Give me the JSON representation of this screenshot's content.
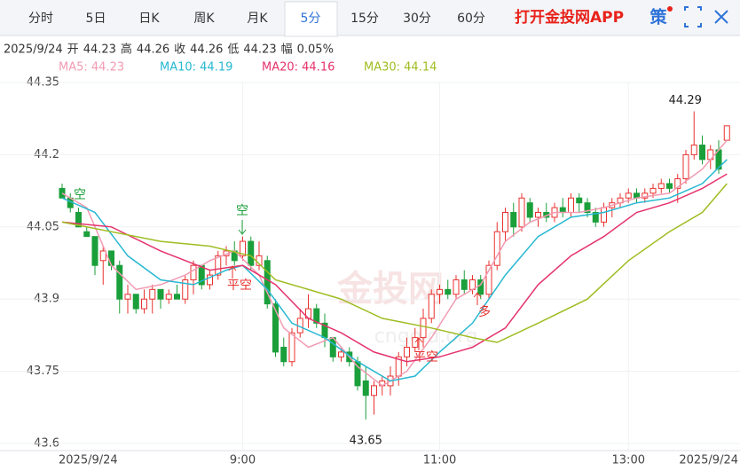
{
  "header": {
    "tabs": [
      "分时",
      "5日",
      "日K",
      "周K",
      "月K",
      "5分",
      "15分",
      "30分",
      "60分"
    ],
    "active_tab": 5,
    "brand": "打开金投网APP",
    "icon": "策"
  },
  "info": {
    "date": "2025/9/24",
    "labels": [
      "开",
      "高",
      "收",
      "低",
      "幅"
    ],
    "change": "0.05%"
  },
  "chart_data": {
    "type": "candlestick",
    "ylim": [
      43.6,
      44.35
    ],
    "yticks": [
      44.35,
      44.2,
      44.05,
      43.9,
      43.75,
      43.6
    ],
    "grid": true,
    "up_color": "#e8322f",
    "down_color": "#1a9f3a",
    "categories": [
      "2025/9/24",
      null,
      null,
      null,
      null,
      null,
      null,
      null,
      null,
      null,
      null,
      null,
      null,
      null,
      null,
      null,
      null,
      null,
      null,
      null,
      null,
      null,
      "9:00",
      null,
      null,
      null,
      null,
      null,
      null,
      null,
      null,
      null,
      null,
      null,
      null,
      null,
      null,
      null,
      null,
      null,
      null,
      null,
      null,
      null,
      null,
      null,
      "11:00",
      null,
      null,
      null,
      null,
      null,
      null,
      null,
      null,
      null,
      null,
      null,
      null,
      null,
      null,
      null,
      null,
      null,
      null,
      null,
      null,
      null,
      null,
      "13:00",
      null,
      null,
      null,
      null,
      null,
      null,
      null,
      null,
      null,
      null,
      null,
      "2025/9/24"
    ],
    "candles": [
      [
        44.13,
        44.14,
        44.11,
        44.11
      ],
      [
        44.11,
        44.12,
        44.08,
        44.09
      ],
      [
        44.08,
        44.09,
        44.05,
        44.05
      ],
      [
        44.04,
        44.05,
        44.03,
        44.03
      ],
      [
        44.03,
        44.03,
        43.95,
        43.97
      ],
      [
        43.98,
        44.01,
        43.93,
        44.0
      ],
      [
        44.0,
        44.0,
        43.96,
        43.97
      ],
      [
        43.97,
        43.98,
        43.87,
        43.9
      ],
      [
        43.9,
        43.93,
        43.87,
        43.91
      ],
      [
        43.91,
        43.91,
        43.87,
        43.88
      ],
      [
        43.88,
        43.92,
        43.87,
        43.9
      ],
      [
        43.9,
        43.93,
        43.87,
        43.92
      ],
      [
        43.92,
        43.92,
        43.88,
        43.9
      ],
      [
        43.9,
        43.92,
        43.89,
        43.91
      ],
      [
        43.91,
        43.93,
        43.9,
        43.9
      ],
      [
        43.9,
        43.95,
        43.89,
        43.94
      ],
      [
        43.94,
        43.98,
        43.91,
        43.97
      ],
      [
        43.97,
        43.97,
        43.92,
        43.93
      ],
      [
        43.93,
        43.96,
        43.92,
        43.95
      ],
      [
        43.95,
        44.0,
        43.94,
        43.99
      ],
      [
        43.99,
        44.01,
        43.97,
        44.0
      ],
      [
        44.0,
        44.02,
        43.97,
        43.98
      ],
      [
        43.99,
        44.03,
        43.98,
        44.02
      ],
      [
        44.02,
        44.03,
        43.96,
        43.97
      ],
      [
        43.97,
        44.02,
        43.96,
        43.99
      ],
      [
        43.98,
        43.99,
        43.88,
        43.89
      ],
      [
        43.89,
        43.9,
        43.78,
        43.79
      ],
      [
        43.8,
        43.82,
        43.76,
        43.77
      ],
      [
        43.77,
        43.84,
        43.76,
        43.83
      ],
      [
        43.83,
        43.88,
        43.82,
        43.86
      ],
      [
        43.86,
        43.91,
        43.84,
        43.88
      ],
      [
        43.88,
        43.89,
        43.84,
        43.85
      ],
      [
        43.85,
        43.87,
        43.8,
        43.82
      ],
      [
        43.82,
        43.82,
        43.77,
        43.78
      ],
      [
        43.78,
        43.8,
        43.77,
        43.79
      ],
      [
        43.79,
        43.8,
        43.76,
        43.77
      ],
      [
        43.77,
        43.78,
        43.71,
        43.72
      ],
      [
        43.73,
        43.76,
        43.65,
        43.7
      ],
      [
        43.7,
        43.73,
        43.66,
        43.72
      ],
      [
        43.72,
        43.74,
        43.7,
        43.73
      ],
      [
        43.72,
        43.76,
        43.7,
        43.74
      ],
      [
        43.74,
        43.79,
        43.72,
        43.78
      ],
      [
        43.78,
        43.82,
        43.76,
        43.8
      ],
      [
        43.8,
        43.84,
        43.79,
        43.82
      ],
      [
        43.82,
        43.88,
        43.8,
        43.86
      ],
      [
        43.86,
        43.92,
        43.85,
        43.91
      ],
      [
        43.91,
        43.93,
        43.89,
        43.92
      ],
      [
        43.92,
        43.94,
        43.9,
        43.91
      ],
      [
        43.91,
        43.95,
        43.9,
        43.94
      ],
      [
        43.94,
        43.96,
        43.91,
        43.92
      ],
      [
        43.92,
        43.95,
        43.91,
        43.94
      ],
      [
        43.94,
        43.95,
        43.9,
        43.91
      ],
      [
        43.91,
        43.98,
        43.9,
        43.97
      ],
      [
        43.97,
        44.06,
        43.96,
        44.04
      ],
      [
        44.04,
        44.09,
        44.02,
        44.08
      ],
      [
        44.08,
        44.1,
        44.03,
        44.05
      ],
      [
        44.05,
        44.12,
        44.04,
        44.11
      ],
      [
        44.1,
        44.11,
        44.06,
        44.07
      ],
      [
        44.07,
        44.09,
        44.05,
        44.08
      ],
      [
        44.08,
        44.1,
        44.06,
        44.07
      ],
      [
        44.07,
        44.1,
        44.06,
        44.09
      ],
      [
        44.09,
        44.11,
        44.07,
        44.08
      ],
      [
        44.08,
        44.12,
        44.07,
        44.11
      ],
      [
        44.11,
        44.12,
        44.08,
        44.1
      ],
      [
        44.1,
        44.11,
        44.07,
        44.08
      ],
      [
        44.08,
        44.09,
        44.05,
        44.06
      ],
      [
        44.06,
        44.1,
        44.05,
        44.09
      ],
      [
        44.09,
        44.11,
        44.07,
        44.1
      ],
      [
        44.1,
        44.12,
        44.09,
        44.11
      ],
      [
        44.11,
        44.13,
        44.1,
        44.12
      ],
      [
        44.12,
        44.13,
        44.1,
        44.11
      ],
      [
        44.11,
        44.13,
        44.1,
        44.12
      ],
      [
        44.12,
        44.14,
        44.11,
        44.13
      ],
      [
        44.13,
        44.15,
        44.12,
        44.14
      ],
      [
        44.14,
        44.15,
        44.12,
        44.13
      ],
      [
        44.13,
        44.16,
        44.1,
        44.15
      ],
      [
        44.15,
        44.21,
        44.14,
        44.2
      ],
      [
        44.2,
        44.29,
        44.19,
        44.22
      ],
      [
        44.22,
        44.24,
        44.18,
        44.19
      ],
      [
        44.19,
        44.22,
        44.17,
        44.21
      ],
      [
        44.21,
        44.23,
        44.16,
        44.17
      ],
      [
        44.23,
        44.26,
        44.23,
        44.26
      ]
    ],
    "series": [
      {
        "name": "MA5: 44.23",
        "color": "#f29bb3",
        "x": [
          0,
          3,
          6,
          9,
          12,
          15,
          18,
          21,
          24,
          27,
          30,
          33,
          36,
          39,
          42,
          45,
          48,
          51,
          54,
          57,
          60,
          63,
          66,
          70,
          74,
          78,
          81
        ],
        "values": [
          44.12,
          44.09,
          43.97,
          43.92,
          43.93,
          43.95,
          43.98,
          44.0,
          43.95,
          43.84,
          43.8,
          43.82,
          43.76,
          43.72,
          43.75,
          43.82,
          43.9,
          43.93,
          44.02,
          44.06,
          44.08,
          44.08,
          44.09,
          44.11,
          44.12,
          44.17,
          44.23
        ]
      },
      {
        "name": "MA10: 44.19",
        "color": "#27b8d2",
        "x": [
          0,
          4,
          8,
          12,
          16,
          20,
          22,
          25,
          28,
          32,
          36,
          40,
          43,
          46,
          50,
          54,
          58,
          62,
          66,
          70,
          74,
          78,
          81
        ],
        "values": [
          44.11,
          44.08,
          43.99,
          43.94,
          43.93,
          43.96,
          43.97,
          43.92,
          43.85,
          43.82,
          43.77,
          43.73,
          43.74,
          43.79,
          43.85,
          43.95,
          44.03,
          44.07,
          44.08,
          44.1,
          44.11,
          44.14,
          44.19
        ]
      },
      {
        "name": "MA20: 44.16",
        "color": "#e5336c",
        "x": [
          0,
          6,
          12,
          18,
          22,
          26,
          30,
          34,
          38,
          42,
          46,
          50,
          54,
          58,
          62,
          66,
          70,
          74,
          78,
          81
        ],
        "values": [
          44.06,
          44.05,
          44.0,
          43.96,
          43.97,
          43.93,
          43.86,
          43.83,
          43.79,
          43.77,
          43.78,
          43.8,
          43.84,
          43.93,
          43.99,
          44.03,
          44.08,
          44.1,
          44.13,
          44.16
        ]
      },
      {
        "name": "MA30: 44.14",
        "color": "#9fbd22",
        "x": [
          0,
          12,
          18,
          23,
          26,
          34,
          39,
          45,
          50,
          53,
          58,
          64,
          69,
          74,
          78,
          81
        ],
        "values": [
          44.06,
          44.02,
          44.01,
          43.99,
          43.94,
          43.9,
          43.86,
          43.84,
          43.82,
          43.81,
          43.85,
          43.9,
          43.98,
          44.04,
          44.08,
          44.14
        ]
      }
    ],
    "signals": [
      "空",
      "空",
      "平空",
      "多",
      "平空"
    ],
    "watermark": [
      "金投网",
      "cngold.org"
    ]
  }
}
